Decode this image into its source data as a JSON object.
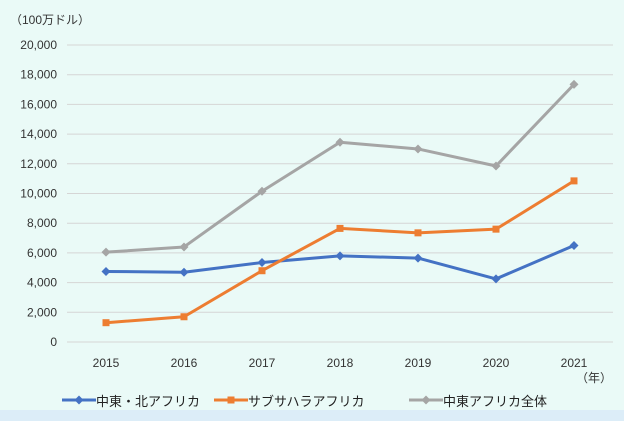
{
  "chart_data": {
    "type": "line",
    "title": "",
    "unit_label": "（100万ドル）",
    "x_suffix": "（年）",
    "categories": [
      "2015",
      "2016",
      "2017",
      "2018",
      "2019",
      "2020",
      "2021"
    ],
    "y_ticks": [
      "0",
      "2,000",
      "4,000",
      "6,000",
      "8,000",
      "10,000",
      "12,000",
      "14,000",
      "16,000",
      "18,000",
      "20,000"
    ],
    "y_tick_step": 2000,
    "ylim": [
      0,
      20000
    ],
    "grid": true,
    "legend_position": "bottom",
    "series": [
      {
        "name": "中東・北アフリカ",
        "color": "#4472c4",
        "marker": "diamond",
        "values": [
          4750,
          4700,
          5350,
          5800,
          5650,
          4250,
          6500
        ]
      },
      {
        "name": "サブサハラアフリカ",
        "color": "#ed7d31",
        "marker": "square",
        "values": [
          1300,
          1700,
          4800,
          7650,
          7350,
          7600,
          10850
        ]
      },
      {
        "name": "中東アフリカ全体",
        "color": "#a5a5a5",
        "marker": "diamond",
        "values": [
          6050,
          6400,
          10150,
          13450,
          13000,
          11850,
          17350
        ]
      }
    ],
    "colors": {
      "background": "#eafaf7",
      "gridline": "#d5d5d5",
      "text": "#333333",
      "bottom_strip": "#dcedf8"
    }
  }
}
